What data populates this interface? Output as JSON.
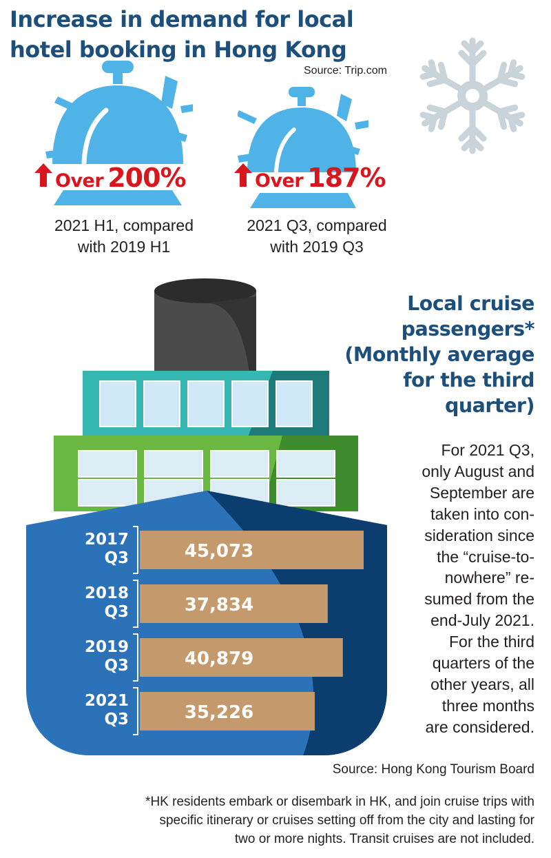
{
  "hotel": {
    "title_line1": "Increase in demand for local",
    "title_line2": "hotel booking in Hong Kong",
    "source": "Source: Trip.com",
    "stats": [
      {
        "prefix": "Over",
        "value": "200%",
        "caption_line1": "2021 H1, compared",
        "caption_line2": "with 2019 H1"
      },
      {
        "prefix": "Over",
        "value": "187%",
        "caption_line1": "2021 Q3, compared",
        "caption_line2": "with 2019 Q3"
      }
    ]
  },
  "cruise": {
    "title_lines": [
      "Local cruise",
      "passengers*",
      "(Monthly average",
      "for the third",
      "quarter)"
    ],
    "note_lines": [
      "For 2021 Q3,",
      "only August and",
      "September are",
      "taken into con-",
      "sideration since",
      "the “cruise-to-",
      "nowhere” re-",
      "sumed from the",
      "end-July 2021.",
      "For the third",
      "quarters of the",
      "other years, all",
      "three months",
      "are considered."
    ],
    "source": "Source: Hong Kong Tourism Board",
    "footnote_lines": [
      "*HK residents embark or disembark in HK, and join cruise trips with",
      "specific itinerary or cruises setting off from the city and lasting for",
      "two or more nights. Transit cruises are not included."
    ]
  },
  "colors": {
    "title_blue": "#1c4f7c",
    "bell_blue": "#4fb3e8",
    "red": "#d7161e",
    "bar_tan": "#c49a6c",
    "hull_blue": "#2b72b8",
    "hull_dark": "#0b3d6e"
  },
  "chart_data": {
    "type": "bar",
    "orientation": "horizontal",
    "title": "Local cruise passengers* (Monthly average for the third quarter)",
    "categories": [
      [
        "2017",
        "Q3"
      ],
      [
        "2018",
        "Q3"
      ],
      [
        "2019",
        "Q3"
      ],
      [
        "2021",
        "Q3"
      ]
    ],
    "values": [
      45073,
      37834,
      40879,
      35226
    ],
    "value_labels": [
      "45,073",
      "37,834",
      "40,879",
      "35,226"
    ],
    "xlim": [
      0,
      45073
    ],
    "grid": false
  }
}
